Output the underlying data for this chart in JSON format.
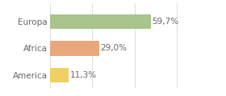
{
  "categories": [
    "Europa",
    "Africa",
    "America"
  ],
  "values": [
    59.7,
    29.0,
    11.3
  ],
  "bar_colors": [
    "#a8c48a",
    "#e8a87c",
    "#f0d060"
  ],
  "labels": [
    "59,7%",
    "29,0%",
    "11,3%"
  ],
  "background_color": "#ffffff",
  "xlim": [
    0,
    80
  ],
  "label_fontsize": 7.5,
  "tick_fontsize": 7.5,
  "bar_height": 0.55,
  "grid_ticks": [
    0,
    25,
    50,
    75
  ],
  "grid_color": "#dddddd",
  "text_color": "#666666"
}
